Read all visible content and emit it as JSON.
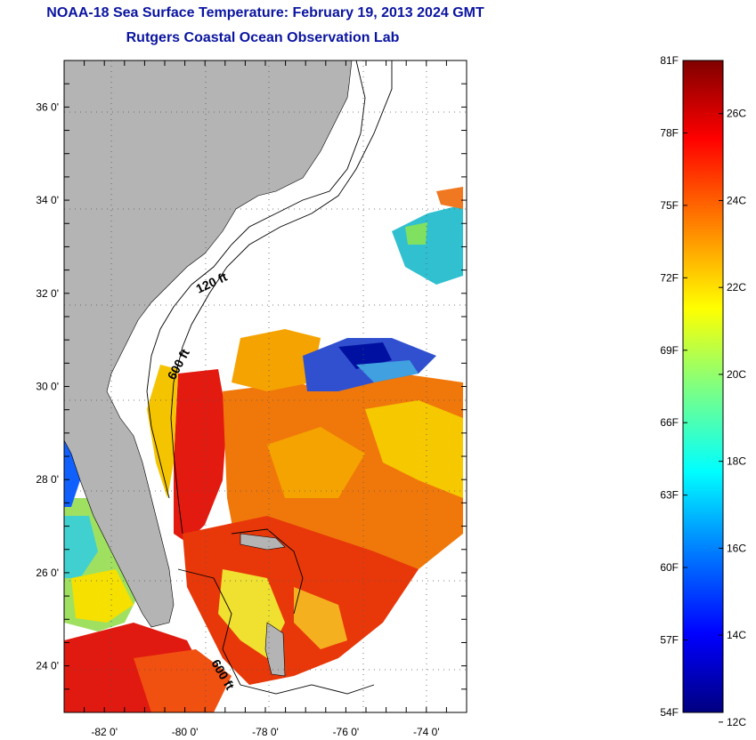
{
  "title": "NOAA-18 Sea Surface Temperature:  February 19, 2013 2024 GMT",
  "subtitle": "Rutgers Coastal Ocean Observation Lab",
  "map": {
    "lon_range": [
      -83,
      -73
    ],
    "lat_range": [
      23,
      37
    ],
    "lon_ticks": [
      "-82 0'",
      "-80 0'",
      "-78 0'",
      "-76 0'",
      "-74 0'"
    ],
    "lat_ticks": [
      "36 0'",
      "34 0'",
      "32 0'",
      "30 0'",
      "28 0'",
      "26 0'",
      "24 0'"
    ],
    "contour_labels": [
      "120 ft",
      "600 ft",
      "600 ft"
    ],
    "colors": {
      "land": "#b4b4b4",
      "ocean_nodata": "#ffffff",
      "title": "#0a14a0"
    }
  },
  "colorbar": {
    "fahrenheit": [
      "81F",
      "78F",
      "75F",
      "72F",
      "69F",
      "66F",
      "63F",
      "60F",
      "57F",
      "54F"
    ],
    "celsius": [
      "26C",
      "24C",
      "22C",
      "20C",
      "18C",
      "16C",
      "14C",
      "12C"
    ],
    "gradient": [
      "#000080",
      "#0000ff",
      "#0080ff",
      "#00ffff",
      "#80ff80",
      "#ffff00",
      "#ff8000",
      "#ff0000",
      "#800000"
    ]
  }
}
